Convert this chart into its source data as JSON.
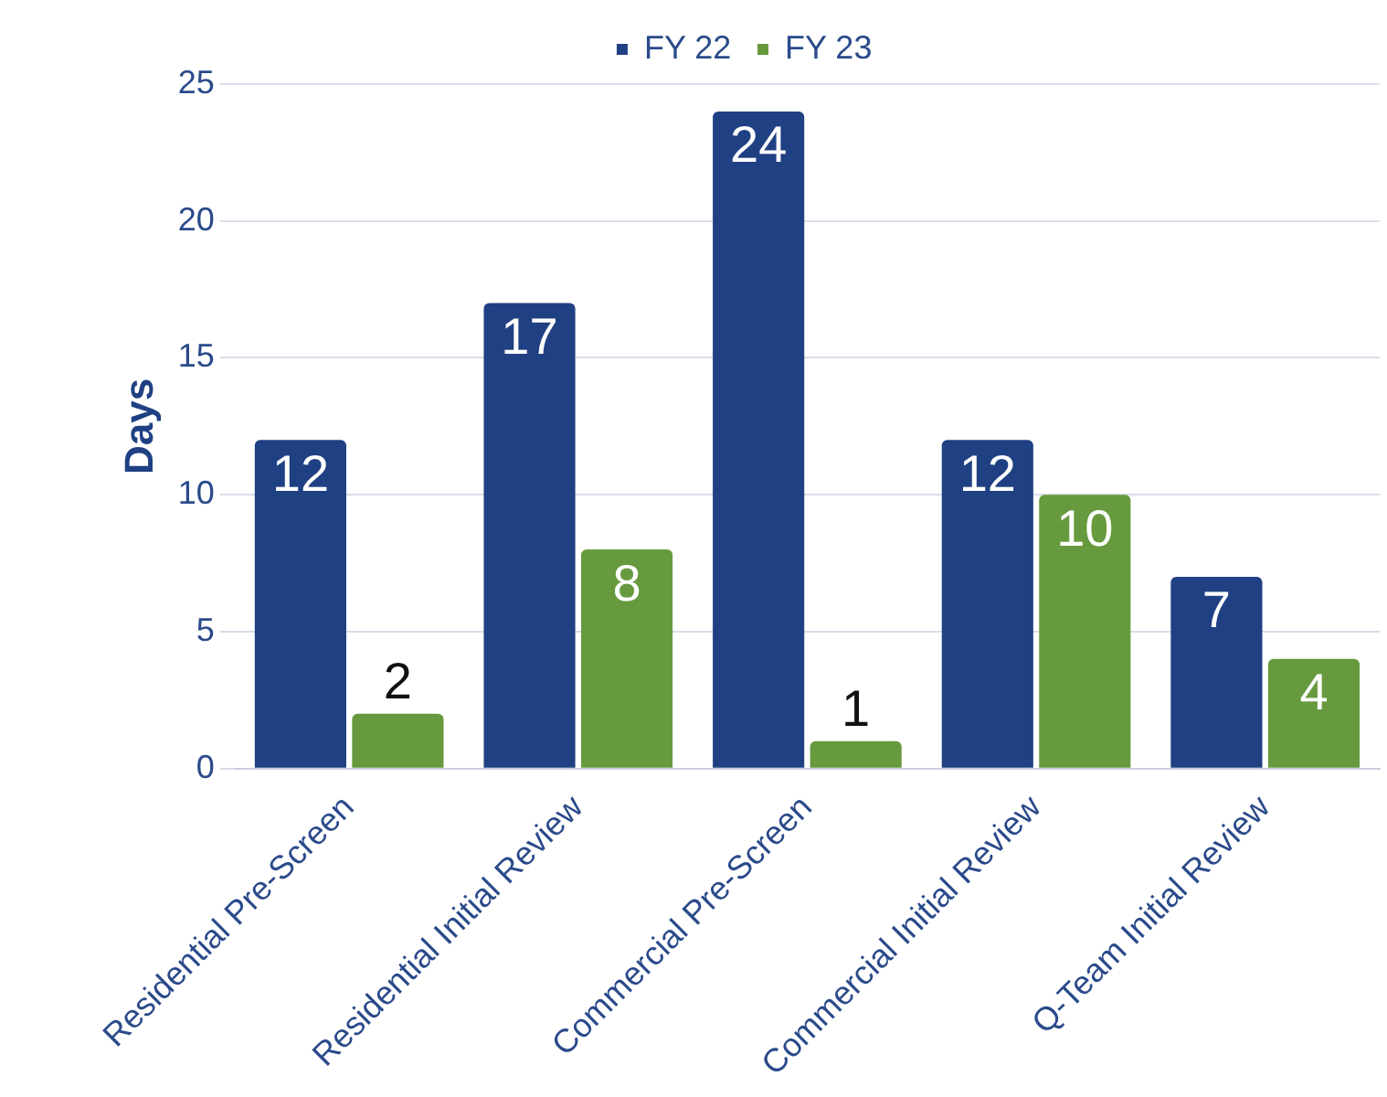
{
  "chart_data": {
    "type": "bar",
    "ylabel": "Days",
    "categories": [
      "Residential Pre-Screen",
      "Residential Initial Review",
      "Commercial Pre-Screen",
      "Commercial Initial Review",
      "Q-Team Initial Review"
    ],
    "series": [
      {
        "name": "FY 22",
        "color": "#1f4082",
        "values": [
          12,
          17,
          24,
          12,
          7
        ]
      },
      {
        "name": "FY 23",
        "color": "#679a3e",
        "values": [
          2,
          8,
          1,
          10,
          4
        ]
      }
    ],
    "ylim": [
      0,
      25
    ],
    "yticks": [
      0,
      5,
      10,
      15,
      20,
      25
    ],
    "grid": "y",
    "legend": "top",
    "data_labels": true
  }
}
